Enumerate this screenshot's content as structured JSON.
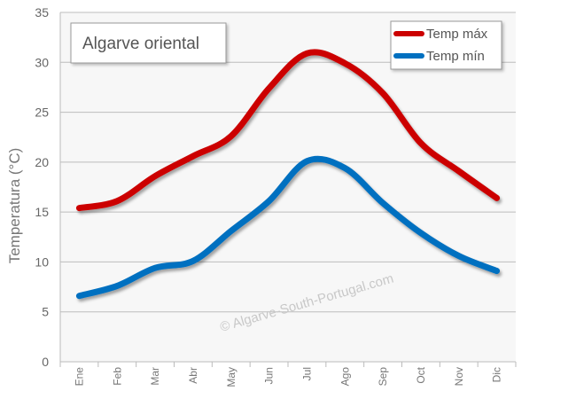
{
  "chart_data": {
    "type": "line",
    "title": "Algarve oriental",
    "ylabel": "Temperatura (°C)",
    "xlabel": "",
    "categories": [
      "Ene",
      "Feb",
      "Mar",
      "Abr",
      "May",
      "Jun",
      "Jul",
      "Ago",
      "Sep",
      "Oct",
      "Nov",
      "Dic"
    ],
    "ylim": [
      0,
      35
    ],
    "yticks": [
      0,
      5,
      10,
      15,
      20,
      25,
      30,
      35
    ],
    "series": [
      {
        "name": "Temp máx",
        "color": "#cc0000",
        "values": [
          15.4,
          16.1,
          18.6,
          20.6,
          22.6,
          27.4,
          30.9,
          29.9,
          26.9,
          21.9,
          19.1,
          16.4
        ]
      },
      {
        "name": "Temp mín",
        "color": "#0070c0",
        "values": [
          6.6,
          7.6,
          9.4,
          10.1,
          13.1,
          16.1,
          20.1,
          19.4,
          15.9,
          12.9,
          10.6,
          9.1
        ]
      }
    ],
    "grid": true,
    "legend_position": "top-right",
    "watermark": "© Algarve-South-Portugal.com"
  }
}
